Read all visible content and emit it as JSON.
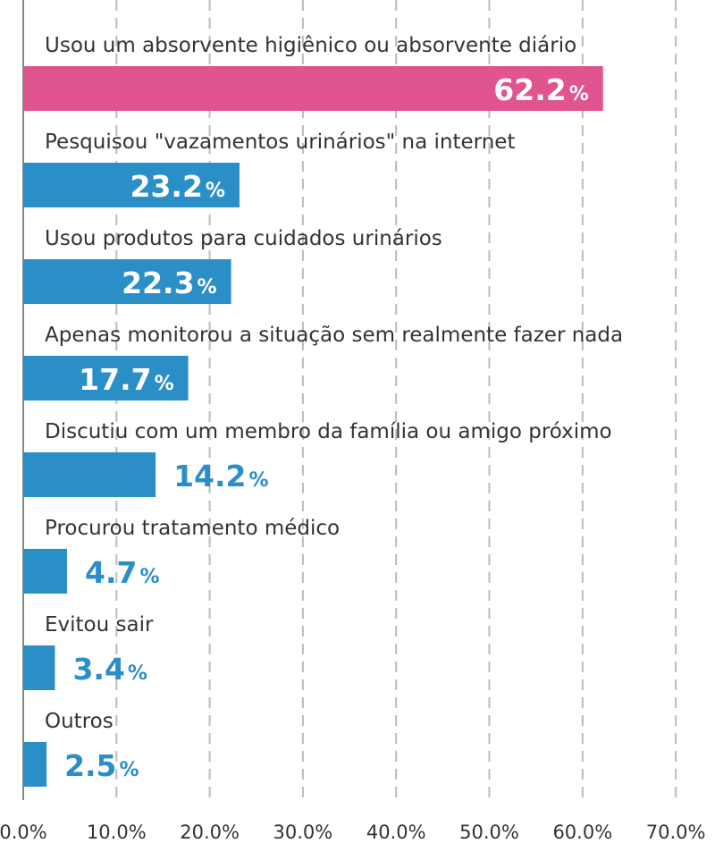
{
  "chart_data": {
    "type": "bar",
    "orientation": "horizontal",
    "categories": [
      "Usou um absorvente higiênico ou absorvente diário",
      "Pesquisou \"vazamentos urinários\" na internet",
      "Usou produtos para cuidados urinários",
      "Apenas monitorou a situação sem realmente fazer nada",
      "Discutiu com um membro da família ou amigo próximo",
      "Procurou tratamento médico",
      "Evitou sair",
      "Outros"
    ],
    "values": [
      62.2,
      23.2,
      22.3,
      17.7,
      14.2,
      4.7,
      3.4,
      2.5
    ],
    "value_labels": [
      "62.2",
      "23.2",
      "22.3",
      "17.7",
      "14.2",
      "4.7",
      "3.4",
      "2.5"
    ],
    "value_suffix": "%",
    "bar_colors": [
      "#e0548f",
      "#2b8fc7",
      "#2b8fc7",
      "#2b8fc7",
      "#2b8fc7",
      "#2b8fc7",
      "#2b8fc7",
      "#2b8fc7"
    ],
    "label_colors": {
      "inside": "#ffffff",
      "outside": "#2b8fc7"
    },
    "xlim": [
      0,
      70
    ],
    "x_ticks": [
      0,
      10,
      20,
      30,
      40,
      50,
      60,
      70
    ],
    "x_tick_labels": [
      "0.0%",
      "10.0%",
      "20.0%",
      "30.0%",
      "40.0%",
      "50.0%",
      "60.0%",
      "70.0%"
    ],
    "grid": "vertical-dashed",
    "grid_color": "#bbbbbb",
    "axis_color": "#888888",
    "legend": "none",
    "title": "",
    "xlabel": "",
    "ylabel": ""
  }
}
